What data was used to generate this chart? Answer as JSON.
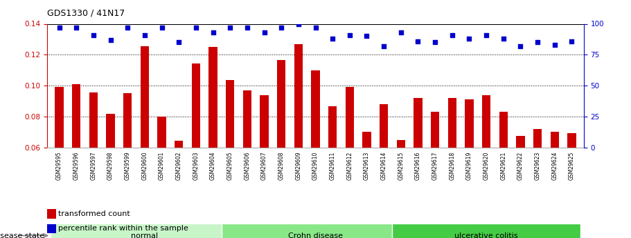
{
  "title": "GDS1330 / 41N17",
  "samples": [
    "GSM29595",
    "GSM29596",
    "GSM29597",
    "GSM29598",
    "GSM29599",
    "GSM29600",
    "GSM29601",
    "GSM29602",
    "GSM29603",
    "GSM29604",
    "GSM29605",
    "GSM29606",
    "GSM29607",
    "GSM29608",
    "GSM29609",
    "GSM29610",
    "GSM29611",
    "GSM29612",
    "GSM29613",
    "GSM29614",
    "GSM29615",
    "GSM29616",
    "GSM29617",
    "GSM29618",
    "GSM29619",
    "GSM29620",
    "GSM29621",
    "GSM29622",
    "GSM29623",
    "GSM29624",
    "GSM29625"
  ],
  "bar_values": [
    0.099,
    0.101,
    0.0955,
    0.082,
    0.095,
    0.1255,
    0.08,
    0.0645,
    0.1145,
    0.125,
    0.1035,
    0.097,
    0.094,
    0.1165,
    0.127,
    0.11,
    0.0865,
    0.099,
    0.07,
    0.088,
    0.065,
    0.092,
    0.083,
    0.092,
    0.091,
    0.094,
    0.083,
    0.0675,
    0.072,
    0.07,
    0.0695
  ],
  "percentile_values": [
    97,
    97,
    91,
    87,
    97,
    91,
    97,
    85,
    97,
    93,
    97,
    97,
    93,
    97,
    100,
    97,
    88,
    91,
    90,
    82,
    93,
    86,
    85,
    91,
    88,
    91,
    88,
    82,
    85,
    83,
    86
  ],
  "groups": [
    {
      "label": "normal",
      "start": 0,
      "end": 10,
      "color": "#c8f5c8"
    },
    {
      "label": "Crohn disease",
      "start": 10,
      "end": 20,
      "color": "#88e888"
    },
    {
      "label": "ulcerative colitis",
      "start": 20,
      "end": 30,
      "color": "#44cc44"
    }
  ],
  "bar_color": "#cc0000",
  "dot_color": "#0000cc",
  "ylim_left": [
    0.06,
    0.14
  ],
  "ylim_right": [
    0,
    100
  ],
  "yticks_left": [
    0.06,
    0.08,
    0.1,
    0.12,
    0.14
  ],
  "yticks_right": [
    0,
    25,
    50,
    75,
    100
  ],
  "grid_lines": [
    0.08,
    0.1,
    0.12
  ],
  "background_color": "#ffffff",
  "tick_bg_color": "#cccccc"
}
